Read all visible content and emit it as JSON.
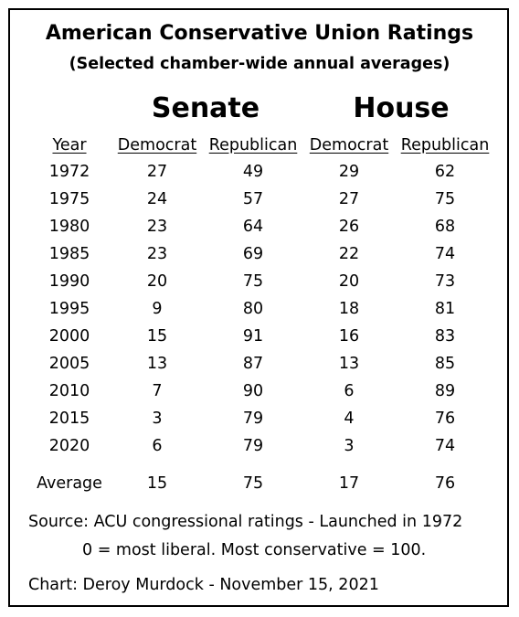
{
  "chart_data": {
    "type": "table",
    "title": "American Conservative Union Ratings",
    "subtitle": "(Selected chamber-wide annual averages)",
    "groups": [
      "Senate",
      "House"
    ],
    "columns": [
      "Year",
      "Democrat",
      "Republican",
      "Democrat",
      "Republican"
    ],
    "rows": [
      [
        "1972",
        "27",
        "49",
        "29",
        "62"
      ],
      [
        "1975",
        "24",
        "57",
        "27",
        "75"
      ],
      [
        "1980",
        "23",
        "64",
        "26",
        "68"
      ],
      [
        "1985",
        "23",
        "69",
        "22",
        "74"
      ],
      [
        "1990",
        "20",
        "75",
        "20",
        "73"
      ],
      [
        "1995",
        "9",
        "80",
        "18",
        "81"
      ],
      [
        "2000",
        "15",
        "91",
        "16",
        "83"
      ],
      [
        "2005",
        "13",
        "87",
        "13",
        "85"
      ],
      [
        "2010",
        "7",
        "90",
        "6",
        "89"
      ],
      [
        "2015",
        "3",
        "79",
        "4",
        "76"
      ],
      [
        "2020",
        "6",
        "79",
        "3",
        "74"
      ]
    ],
    "average_row": [
      "Average",
      "15",
      "75",
      "17",
      "76"
    ],
    "source": "Source: ACU congressional ratings - Launched in 1972",
    "scale_note": "0 = most liberal. Most conservative = 100.",
    "credit": "Chart: Deroy Murdock - November 15, 2021"
  }
}
